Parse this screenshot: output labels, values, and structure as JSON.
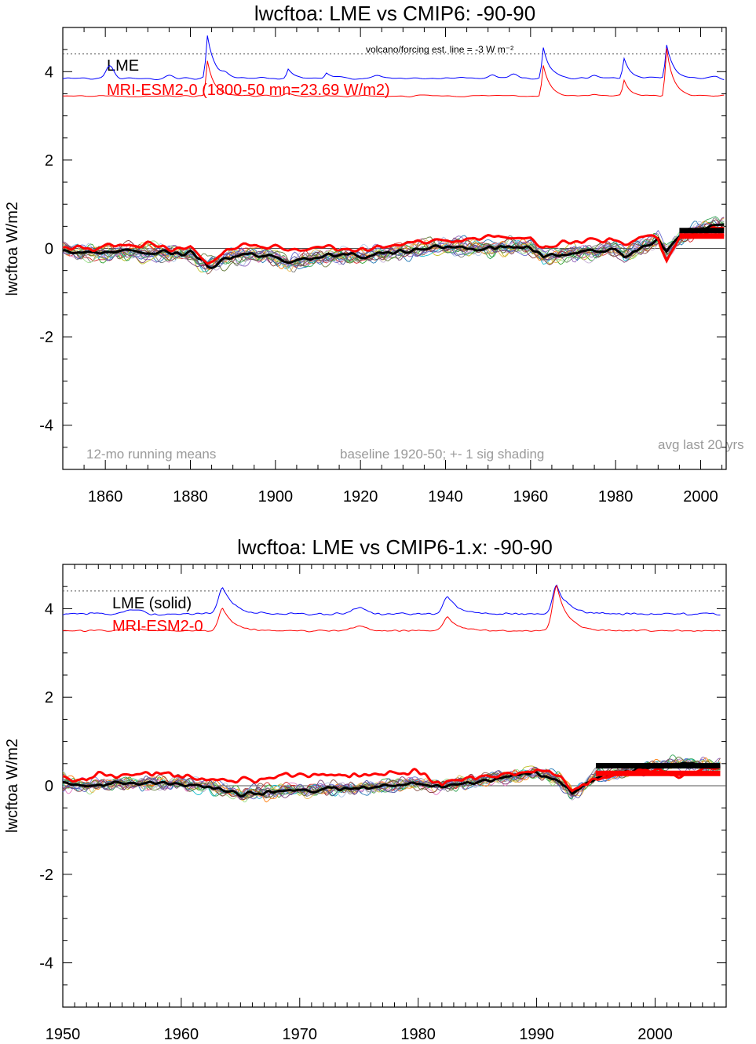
{
  "colors": {
    "lme": "#0000ff",
    "model": "#ff0000",
    "ensemble_mean": "#000000",
    "annotation_gray": "#9a9a9a",
    "members": [
      "#1f77b4",
      "#2ca02c",
      "#d62728",
      "#9467bd",
      "#8c564b",
      "#e377c2",
      "#7f7f7f",
      "#bcbd22",
      "#17becf",
      "#ff7f0e",
      "#aec7e8",
      "#98df8a",
      "#c5b0d5",
      "#6b6ecf",
      "#e7ba52",
      "#31a354",
      "#843c39",
      "#5254a3",
      "#637939",
      "#7b4173"
    ]
  },
  "chart_data": [
    {
      "type": "line",
      "title": "lwcftoa: LME vs CMIP6: -90-90",
      "ylabel": "lwcftoa W/m2",
      "xlabel": "",
      "xlim": [
        1850,
        2006
      ],
      "ylim": [
        -5,
        5
      ],
      "xticks": [
        1860,
        1880,
        1900,
        1920,
        1940,
        1960,
        1980,
        2000
      ],
      "yticks": [
        -4,
        -2,
        0,
        2,
        4
      ],
      "grid": false,
      "reference_line": 0,
      "dotted_line_y": 4.4,
      "legend": [
        {
          "label": "LME",
          "color": "#000000"
        },
        {
          "label": "MRI-ESM2-0 (1800-50 mn=23.69 W/m2)",
          "color": "#ff0000"
        }
      ],
      "annotations": {
        "top_note": "volcano/forcing est.      line = -3 W m⁻²",
        "bottom_left": "12-mo running means",
        "bottom_mid": "baseline 1920-50; +- 1 sig shading",
        "bottom_right": "avg last 20 yrs"
      },
      "volcano_lme": {
        "base": 3.85,
        "spikes": [
          [
            1884,
            0.95
          ],
          [
            1903,
            0.2
          ],
          [
            1912,
            0.12
          ],
          [
            1963,
            0.7
          ],
          [
            1982,
            0.45
          ],
          [
            1992,
            0.75
          ]
        ],
        "minor_spikes": [
          [
            1861,
            0.3
          ],
          [
            1875,
            0.08
          ],
          [
            1888,
            0.08
          ],
          [
            1924,
            0.08
          ],
          [
            1951,
            0.1
          ],
          [
            1956,
            0.12
          ],
          [
            1975,
            0.08
          ],
          [
            2003,
            0.04
          ]
        ]
      },
      "volcano_model": {
        "base": 3.45,
        "spikes": [
          [
            1884,
            0.8
          ],
          [
            1963,
            0.7
          ],
          [
            1982,
            0.35
          ],
          [
            1992,
            1.1
          ]
        ],
        "minor_spikes": [
          [
            1903,
            0.05
          ],
          [
            1975,
            0.05
          ]
        ]
      },
      "ensemble_members": 20,
      "ensemble_mean_knots": [
        [
          1850,
          -0.08
        ],
        [
          1860,
          -0.1
        ],
        [
          1870,
          -0.08
        ],
        [
          1880,
          -0.12
        ],
        [
          1884,
          -0.4
        ],
        [
          1890,
          -0.15
        ],
        [
          1900,
          -0.18
        ],
        [
          1903,
          -0.35
        ],
        [
          1910,
          -0.2
        ],
        [
          1920,
          -0.15
        ],
        [
          1930,
          -0.05
        ],
        [
          1940,
          0.05
        ],
        [
          1950,
          0.0
        ],
        [
          1960,
          0.05
        ],
        [
          1963,
          -0.2
        ],
        [
          1970,
          -0.1
        ],
        [
          1980,
          0.0
        ],
        [
          1982,
          -0.15
        ],
        [
          1990,
          0.2
        ],
        [
          1992,
          -0.1
        ],
        [
          1995,
          0.2
        ],
        [
          2000,
          0.45
        ],
        [
          2005,
          0.5
        ]
      ],
      "model_knots": [
        [
          1850,
          -0.05
        ],
        [
          1860,
          0.0
        ],
        [
          1870,
          0.05
        ],
        [
          1880,
          -0.02
        ],
        [
          1884,
          -0.4
        ],
        [
          1890,
          0.05
        ],
        [
          1900,
          0.05
        ],
        [
          1903,
          -0.05
        ],
        [
          1910,
          0.0
        ],
        [
          1920,
          0.0
        ],
        [
          1930,
          0.1
        ],
        [
          1940,
          0.15
        ],
        [
          1950,
          0.25
        ],
        [
          1960,
          0.2
        ],
        [
          1963,
          0.0
        ],
        [
          1970,
          0.2
        ],
        [
          1980,
          0.2
        ],
        [
          1982,
          0.1
        ],
        [
          1990,
          0.3
        ],
        [
          1992,
          -0.2
        ],
        [
          1995,
          0.2
        ],
        [
          2000,
          0.4
        ],
        [
          2005,
          0.45
        ]
      ],
      "avg_last20": {
        "start": 1995,
        "end": 2005,
        "ensemble": 0.35,
        "model": 0.35
      }
    },
    {
      "type": "line",
      "title": "lwcftoa: LME vs CMIP6-1.x: -90-90",
      "ylabel": "lwcftoa W/m2",
      "xlabel": "",
      "xlim": [
        1950,
        2006
      ],
      "ylim": [
        -5,
        5
      ],
      "xticks": [
        1950,
        1960,
        1970,
        1980,
        1990,
        2000
      ],
      "yticks": [
        -4,
        -2,
        0,
        2,
        4
      ],
      "grid": false,
      "reference_line": 0,
      "dotted_line_y": 4.4,
      "legend": [
        {
          "label": "LME (solid)",
          "color": "#000000"
        },
        {
          "label": "MRI-ESM2-0",
          "color": "#ff0000"
        }
      ],
      "volcano_lme": {
        "base": 3.88,
        "spikes": [
          [
            1963.5,
            0.6
          ],
          [
            1982.5,
            0.4
          ],
          [
            1991.7,
            0.65
          ]
        ],
        "minor_spikes": [
          [
            1956,
            0.12
          ],
          [
            1975,
            0.15
          ]
        ]
      },
      "volcano_model": {
        "base": 3.5,
        "spikes": [
          [
            1963.5,
            0.5
          ],
          [
            1982.5,
            0.3
          ],
          [
            1991.7,
            1.0
          ]
        ],
        "minor_spikes": [
          [
            1956,
            0.05
          ],
          [
            1975,
            0.1
          ]
        ]
      },
      "ensemble_members": 20,
      "ensemble_mean_knots": [
        [
          1950,
          0.05
        ],
        [
          1952,
          0.0
        ],
        [
          1955,
          0.05
        ],
        [
          1960,
          0.05
        ],
        [
          1963,
          -0.05
        ],
        [
          1965,
          -0.2
        ],
        [
          1970,
          -0.1
        ],
        [
          1975,
          -0.05
        ],
        [
          1980,
          0.05
        ],
        [
          1982,
          0.0
        ],
        [
          1985,
          0.1
        ],
        [
          1990,
          0.3
        ],
        [
          1992,
          0.1
        ],
        [
          1993,
          -0.15
        ],
        [
          1995,
          0.2
        ],
        [
          2000,
          0.45
        ],
        [
          2002,
          0.5
        ],
        [
          2005,
          0.45
        ]
      ],
      "model_knots": [
        [
          1950,
          0.15
        ],
        [
          1952,
          0.1
        ],
        [
          1953,
          0.3
        ],
        [
          1955,
          0.25
        ],
        [
          1960,
          0.25
        ],
        [
          1963,
          0.15
        ],
        [
          1965,
          0.15
        ],
        [
          1970,
          0.2
        ],
        [
          1975,
          0.25
        ],
        [
          1980,
          0.3
        ],
        [
          1982,
          0.05
        ],
        [
          1985,
          0.2
        ],
        [
          1990,
          0.35
        ],
        [
          1992,
          0.2
        ],
        [
          1993,
          -0.1
        ],
        [
          1995,
          0.15
        ],
        [
          2000,
          0.35
        ],
        [
          2002,
          0.25
        ],
        [
          2005,
          0.4
        ]
      ],
      "avg_last20": {
        "start": 1995,
        "end": 2005,
        "ensemble": 0.4,
        "model": 0.35
      }
    }
  ]
}
